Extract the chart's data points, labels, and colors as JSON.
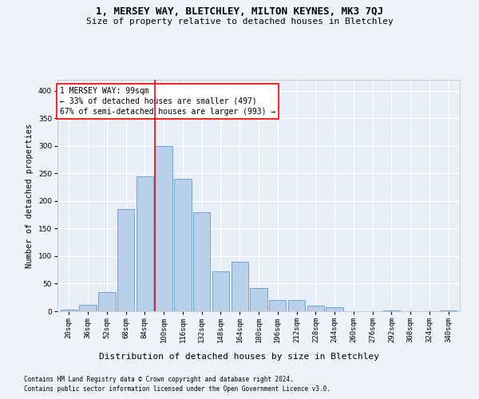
{
  "title1": "1, MERSEY WAY, BLETCHLEY, MILTON KEYNES, MK3 7QJ",
  "title2": "Size of property relative to detached houses in Bletchley",
  "xlabel": "Distribution of detached houses by size in Bletchley",
  "ylabel": "Number of detached properties",
  "footnote1": "Contains HM Land Registry data © Crown copyright and database right 2024.",
  "footnote2": "Contains public sector information licensed under the Open Government Licence v3.0.",
  "bin_labels": [
    "20sqm",
    "36sqm",
    "52sqm",
    "68sqm",
    "84sqm",
    "100sqm",
    "116sqm",
    "132sqm",
    "148sqm",
    "164sqm",
    "180sqm",
    "196sqm",
    "212sqm",
    "228sqm",
    "244sqm",
    "260sqm",
    "276sqm",
    "292sqm",
    "308sqm",
    "324sqm",
    "340sqm"
  ],
  "bar_values": [
    3,
    12,
    35,
    185,
    245,
    300,
    240,
    180,
    73,
    90,
    42,
    20,
    20,
    10,
    7,
    0,
    0,
    1,
    0,
    0,
    1
  ],
  "bar_color": "#b8d0ea",
  "bar_edge_color": "#6699cc",
  "vline_color": "red",
  "vline_index": 5,
  "annotation_text": "1 MERSEY WAY: 99sqm\n← 33% of detached houses are smaller (497)\n67% of semi-detached houses are larger (993) →",
  "annotation_box_color": "white",
  "annotation_box_edge": "red",
  "ylim": [
    0,
    420
  ],
  "yticks": [
    0,
    50,
    100,
    150,
    200,
    250,
    300,
    350,
    400
  ],
  "background_color": "#eef2fa",
  "plot_bg_color": "#e8eef8",
  "title1_fontsize": 9,
  "title2_fontsize": 8,
  "ylabel_fontsize": 7.5,
  "xlabel_fontsize": 8,
  "tick_fontsize": 6.5,
  "annot_fontsize": 7,
  "footnote_fontsize": 5.5
}
